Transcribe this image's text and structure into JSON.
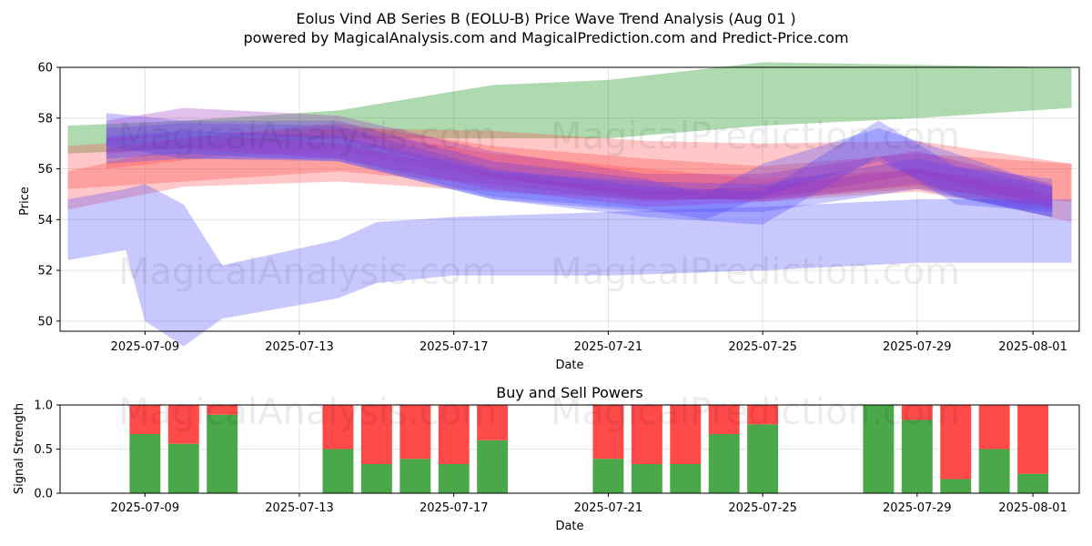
{
  "header": {
    "title": "Eolus Vind AB Series B (EOLU-B) Price Wave Trend Analysis (Aug 01 )",
    "subtitle": "powered by MagicalAnalysis.com and MagicalPrediction.com and Predict-Price.com"
  },
  "watermarks": [
    "MagicalAnalysis.com",
    "MagicalPrediction.com"
  ],
  "colors": {
    "green": "#2e9e2e",
    "red": "#ff4444",
    "blue": "#4a4aff",
    "purple": "#9a30c0",
    "buy_bar": "#4aa84a",
    "sell_bar": "#ff4a4a"
  },
  "chart_data": [
    {
      "type": "area",
      "title": "",
      "xlabel": "Date",
      "ylabel": "Price",
      "xlim": [
        "2025-07-06.8",
        "2025-08-02.2"
      ],
      "ylim": [
        49.6,
        60
      ],
      "x_ticks": [
        "2025-07-09",
        "2025-07-13",
        "2025-07-17",
        "2025-07-21",
        "2025-07-25",
        "2025-07-29",
        "2025-08-01"
      ],
      "y_ticks": [
        "50",
        "52",
        "54",
        "56",
        "58",
        "60"
      ],
      "grid": true,
      "series": [
        {
          "color": "green",
          "x": [
            "2025-07-07",
            "2025-07-10",
            "2025-07-14",
            "2025-07-18",
            "2025-07-21",
            "2025-07-25",
            "2025-07-29",
            "2025-08-02"
          ],
          "upper": [
            57.7,
            57.9,
            58.3,
            59.3,
            59.5,
            60.2,
            60.1,
            60.0
          ],
          "lower": [
            56.6,
            56.8,
            57.2,
            57.2,
            57.2,
            57.7,
            58.0,
            58.4
          ]
        },
        {
          "color": "red",
          "x": [
            "2025-07-07",
            "2025-07-10",
            "2025-07-14",
            "2025-07-18",
            "2025-07-22",
            "2025-07-25",
            "2025-07-29",
            "2025-08-02"
          ],
          "upper": [
            56.9,
            57.2,
            57.8,
            56.9,
            56.4,
            56.1,
            56.6,
            56.2
          ],
          "lower": [
            55.2,
            55.5,
            55.9,
            55.4,
            54.7,
            54.9,
            55.3,
            53.9
          ]
        },
        {
          "color": "red",
          "x": [
            "2025-07-07",
            "2025-07-10",
            "2025-07-14",
            "2025-07-18",
            "2025-07-22",
            "2025-07-25",
            "2025-07-29",
            "2025-08-02"
          ],
          "upper": [
            55.9,
            56.9,
            57.6,
            57.5,
            57.1,
            57.0,
            57.1,
            56.2
          ],
          "lower": [
            54.4,
            55.3,
            55.5,
            55.1,
            54.8,
            54.8,
            55.2,
            54.7
          ]
        },
        {
          "color": "red",
          "x": [
            "2025-07-08",
            "2025-07-11",
            "2025-07-14",
            "2025-07-18",
            "2025-07-22",
            "2025-07-25",
            "2025-07-29",
            "2025-08-01"
          ],
          "upper": [
            56.8,
            57.4,
            57.6,
            56.6,
            56.0,
            55.6,
            56.0,
            55.4
          ],
          "lower": [
            56.0,
            56.5,
            56.7,
            55.6,
            55.0,
            54.7,
            55.1,
            54.4
          ]
        },
        {
          "color": "blue",
          "x": [
            "2025-07-07",
            "2025-07-08.5",
            "2025-07-09",
            "2025-07-10",
            "2025-07-11",
            "2025-07-14",
            "2025-07-15",
            "2025-07-17",
            "2025-07-21",
            "2025-07-25",
            "2025-07-29",
            "2025-08-02"
          ],
          "upper": [
            54.8,
            55.2,
            55.4,
            54.6,
            52.2,
            53.2,
            53.9,
            54.1,
            54.3,
            54.5,
            54.8,
            54.8
          ],
          "lower": [
            52.4,
            52.8,
            50.0,
            49.0,
            50.1,
            50.9,
            51.5,
            51.8,
            51.8,
            52.0,
            52.3,
            52.3
          ]
        },
        {
          "color": "blue",
          "x": [
            "2025-07-08",
            "2025-07-10",
            "2025-07-14",
            "2025-07-18",
            "2025-07-22",
            "2025-07-23.5",
            "2025-07-25",
            "2025-07-28",
            "2025-07-30",
            "2025-08-01.5"
          ],
          "upper": [
            58.2,
            57.9,
            57.9,
            56.3,
            55.6,
            55.0,
            56.2,
            57.6,
            56.6,
            55.3
          ],
          "lower": [
            56.9,
            56.4,
            56.4,
            54.9,
            54.4,
            54.0,
            54.9,
            56.3,
            54.9,
            54.1
          ]
        },
        {
          "color": "blue",
          "x": [
            "2025-07-08",
            "2025-07-10",
            "2025-07-14",
            "2025-07-18",
            "2025-07-22",
            "2025-07-25",
            "2025-07-28",
            "2025-07-30",
            "2025-08-01.5"
          ],
          "upper": [
            57.6,
            57.8,
            57.7,
            56.0,
            55.3,
            55.1,
            57.9,
            56.1,
            55.6
          ],
          "lower": [
            56.4,
            56.6,
            56.3,
            54.8,
            54.1,
            53.8,
            56.5,
            54.6,
            54.3
          ]
        },
        {
          "color": "blue",
          "x": [
            "2025-07-08",
            "2025-07-10",
            "2025-07-14",
            "2025-07-18",
            "2025-07-22",
            "2025-07-25",
            "2025-07-29",
            "2025-08-01.5"
          ],
          "upper": [
            57.3,
            57.5,
            57.3,
            55.9,
            55.5,
            55.4,
            56.4,
            55.3
          ],
          "lower": [
            56.2,
            56.4,
            56.3,
            54.8,
            54.3,
            54.3,
            55.2,
            54.1
          ]
        },
        {
          "color": "purple",
          "x": [
            "2025-07-08",
            "2025-07-10",
            "2025-07-14",
            "2025-07-18",
            "2025-07-22",
            "2025-07-25",
            "2025-07-29",
            "2025-08-01.5"
          ],
          "upper": [
            57.9,
            58.4,
            58.1,
            56.7,
            55.8,
            55.8,
            56.7,
            55.4
          ],
          "lower": [
            57.0,
            57.4,
            57.2,
            55.7,
            54.8,
            54.8,
            55.8,
            54.5
          ]
        },
        {
          "color": "purple",
          "x": [
            "2025-07-08",
            "2025-07-10",
            "2025-07-14",
            "2025-07-18",
            "2025-07-22",
            "2025-07-25",
            "2025-07-29",
            "2025-08-01.5"
          ],
          "upper": [
            57.2,
            57.4,
            57.0,
            55.8,
            55.1,
            55.3,
            56.0,
            55.0
          ],
          "lower": [
            56.6,
            56.8,
            56.4,
            55.2,
            54.5,
            54.7,
            55.4,
            54.4
          ]
        }
      ]
    },
    {
      "type": "bar",
      "title": "Buy and Sell Powers",
      "xlabel": "Date",
      "ylabel": "Signal Strength",
      "ylim": [
        0,
        1
      ],
      "y_ticks": [
        "0.0",
        "0.5",
        "1.0"
      ],
      "x_ticks": [
        "2025-07-09",
        "2025-07-13",
        "2025-07-17",
        "2025-07-21",
        "2025-07-25",
        "2025-07-29",
        "2025-08-01"
      ],
      "grid": true,
      "series": [
        {
          "name": "",
          "color": "buy_bar",
          "kind": "buy"
        },
        {
          "name": "",
          "color": "sell_bar",
          "kind": "sell"
        }
      ],
      "categories": [
        "2025-07-09",
        "2025-07-10",
        "2025-07-11",
        "2025-07-14",
        "2025-07-15",
        "2025-07-16",
        "2025-07-17",
        "2025-07-18",
        "2025-07-21",
        "2025-07-22",
        "2025-07-23",
        "2025-07-24",
        "2025-07-25",
        "2025-07-28",
        "2025-07-29",
        "2025-07-30",
        "2025-07-31",
        "2025-08-01"
      ],
      "buy": [
        0.67,
        0.56,
        0.89,
        0.5,
        0.33,
        0.39,
        0.33,
        0.6,
        0.39,
        0.33,
        0.33,
        0.67,
        0.78,
        1.0,
        0.83,
        0.16,
        0.5,
        0.22
      ]
    }
  ]
}
